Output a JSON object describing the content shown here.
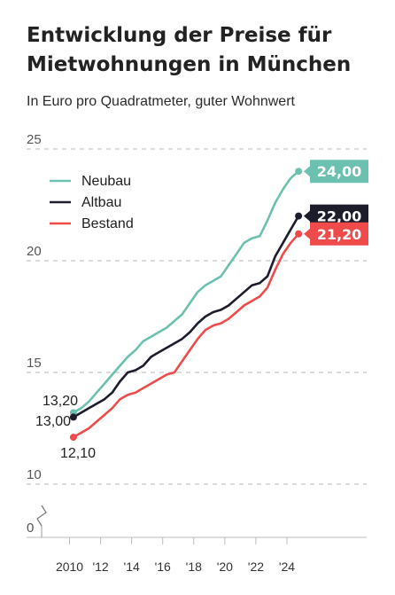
{
  "title": "Entwicklung der Preise für Mietwohnungen in München",
  "subtitle": "In Euro pro Quadratmeter, guter Wohnwert",
  "colors": {
    "neubau": "#6cc0b0",
    "altbau": "#1c1c2b",
    "bestand": "#ef4b4b",
    "grid": "#c8c8c8",
    "axis": "#bdbdbd"
  },
  "chart_data": {
    "type": "line",
    "title": "Entwicklung der Preise für Mietwohnungen in München",
    "subtitle": "In Euro pro Quadratmeter, guter Wohnwert",
    "ylim": [
      0,
      25
    ],
    "yticks": [
      0,
      10,
      15,
      20,
      25
    ],
    "y_axis_break": true,
    "grid": true,
    "legend": "top-left",
    "xlim": [
      2009.4,
      2025.2
    ],
    "xticks": [
      2010,
      2012,
      2014,
      2016,
      2018,
      2020,
      2022,
      2024
    ],
    "xtick_labels": [
      "2010",
      "'12",
      "'14",
      "'16",
      "'18",
      "'20",
      "'22",
      "'24"
    ],
    "x": [
      2010.25,
      2010.75,
      2011.25,
      2011.75,
      2012.25,
      2012.75,
      2013.25,
      2013.75,
      2014.25,
      2014.75,
      2015.25,
      2015.75,
      2016.25,
      2016.75,
      2017.25,
      2017.75,
      2018.25,
      2018.75,
      2019.25,
      2019.75,
      2020.25,
      2020.75,
      2021.25,
      2021.75,
      2022.25,
      2022.75,
      2023.25,
      2023.75,
      2024.25,
      2024.75
    ],
    "series": [
      {
        "name": "Neubau",
        "color": "#6cc0b0",
        "start_label": "13,20",
        "end_label": "24,00",
        "values": [
          13.2,
          13.4,
          13.7,
          14.1,
          14.5,
          14.9,
          15.3,
          15.7,
          16.0,
          16.4,
          16.6,
          16.8,
          17.0,
          17.3,
          17.6,
          18.1,
          18.6,
          18.9,
          19.1,
          19.3,
          19.8,
          20.3,
          20.8,
          21.0,
          21.1,
          21.8,
          22.6,
          23.2,
          23.7,
          24.0
        ]
      },
      {
        "name": "Altbau",
        "color": "#1c1c2b",
        "start_label": "13,00",
        "end_label": "22,00",
        "values": [
          13.0,
          13.2,
          13.4,
          13.6,
          13.8,
          14.1,
          14.6,
          15.0,
          15.1,
          15.3,
          15.7,
          15.9,
          16.1,
          16.3,
          16.5,
          16.8,
          17.2,
          17.5,
          17.7,
          17.8,
          18.0,
          18.3,
          18.6,
          18.9,
          19.0,
          19.3,
          20.2,
          20.8,
          21.4,
          22.0
        ]
      },
      {
        "name": "Bestand",
        "color": "#ef4b4b",
        "start_label": "12,10",
        "end_label": "21,20",
        "values": [
          12.1,
          12.3,
          12.5,
          12.8,
          13.1,
          13.4,
          13.8,
          14.0,
          14.1,
          14.3,
          14.5,
          14.7,
          14.9,
          15.0,
          15.5,
          16.0,
          16.5,
          16.9,
          17.1,
          17.2,
          17.4,
          17.7,
          18.0,
          18.2,
          18.4,
          18.8,
          19.6,
          20.3,
          20.8,
          21.2
        ]
      }
    ]
  }
}
